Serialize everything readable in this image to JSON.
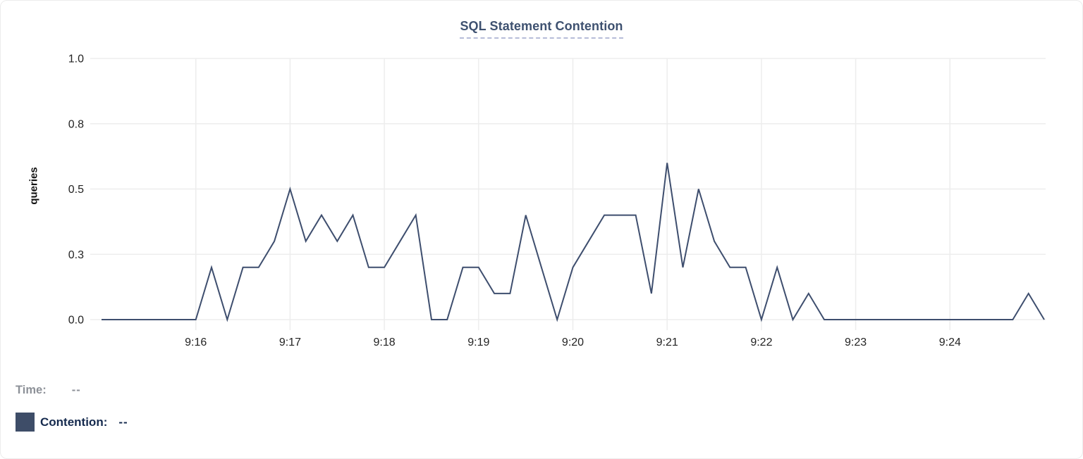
{
  "header": {
    "title": "SQL Statement Contention"
  },
  "chart_data": {
    "type": "line",
    "title": "SQL Statement Contention",
    "xlabel": "",
    "ylabel": "queries",
    "ylim": [
      0,
      1.0
    ],
    "grid": true,
    "legend_position": "bottom-left",
    "x_step_seconds": 10,
    "x": [
      "9:15:00",
      "9:15:10",
      "9:15:20",
      "9:15:30",
      "9:15:40",
      "9:15:50",
      "9:16:00",
      "9:16:10",
      "9:16:20",
      "9:16:30",
      "9:16:40",
      "9:16:50",
      "9:17:00",
      "9:17:10",
      "9:17:20",
      "9:17:30",
      "9:17:40",
      "9:17:50",
      "9:18:00",
      "9:18:10",
      "9:18:20",
      "9:18:30",
      "9:18:40",
      "9:18:50",
      "9:19:00",
      "9:19:10",
      "9:19:20",
      "9:19:30",
      "9:19:40",
      "9:19:50",
      "9:20:00",
      "9:20:10",
      "9:20:20",
      "9:20:30",
      "9:20:40",
      "9:20:50",
      "9:21:00",
      "9:21:10",
      "9:21:20",
      "9:21:30",
      "9:21:40",
      "9:21:50",
      "9:22:00",
      "9:22:10",
      "9:22:20",
      "9:22:30",
      "9:22:40",
      "9:22:50",
      "9:23:00",
      "9:23:10",
      "9:23:20",
      "9:23:30",
      "9:23:40",
      "9:23:50",
      "9:24:00",
      "9:24:10",
      "9:24:20",
      "9:24:30",
      "9:24:40",
      "9:24:50",
      "9:25:00"
    ],
    "series": [
      {
        "name": "Contention",
        "color": "#3e4e6e",
        "values": [
          0,
          0,
          0,
          0,
          0,
          0,
          0,
          0.2,
          0,
          0.2,
          0.2,
          0.3,
          0.5,
          0.3,
          0.4,
          0.3,
          0.4,
          0.2,
          0.2,
          0.3,
          0.4,
          0,
          0,
          0.2,
          0.2,
          0.1,
          0.1,
          0.4,
          0.2,
          0,
          0.2,
          0.3,
          0.4,
          0.4,
          0.4,
          0.1,
          0.6,
          0.2,
          0.5,
          0.3,
          0.2,
          0.2,
          0,
          0.2,
          0,
          0.1,
          0,
          0,
          0,
          0,
          0,
          0,
          0,
          0,
          0,
          0,
          0,
          0,
          0,
          0.1,
          0
        ]
      }
    ],
    "yticks": [
      {
        "label": "1.0",
        "value": 1.0
      },
      {
        "label": "0.8",
        "value": 0.75
      },
      {
        "label": "0.5",
        "value": 0.5
      },
      {
        "label": "0.3",
        "value": 0.25
      },
      {
        "label": "0.0",
        "value": 0.0
      }
    ],
    "xticks": [
      {
        "label": "9:16",
        "index": 6
      },
      {
        "label": "9:17",
        "index": 12
      },
      {
        "label": "9:18",
        "index": 18
      },
      {
        "label": "9:19",
        "index": 24
      },
      {
        "label": "9:20",
        "index": 30
      },
      {
        "label": "9:21",
        "index": 36
      },
      {
        "label": "9:22",
        "index": 42
      },
      {
        "label": "9:23",
        "index": 48
      },
      {
        "label": "9:24",
        "index": 54
      }
    ]
  },
  "legend": {
    "time_label": "Time:",
    "time_value": "--",
    "series_swatch_color": "#3e4d68",
    "series_label": "Contention:",
    "series_value": "--"
  },
  "colors": {
    "line": "#3e4e6e",
    "grid": "#ededed",
    "axis_text": "#232323",
    "title": "#3e5170",
    "title_underline": "#b6bcd8"
  }
}
